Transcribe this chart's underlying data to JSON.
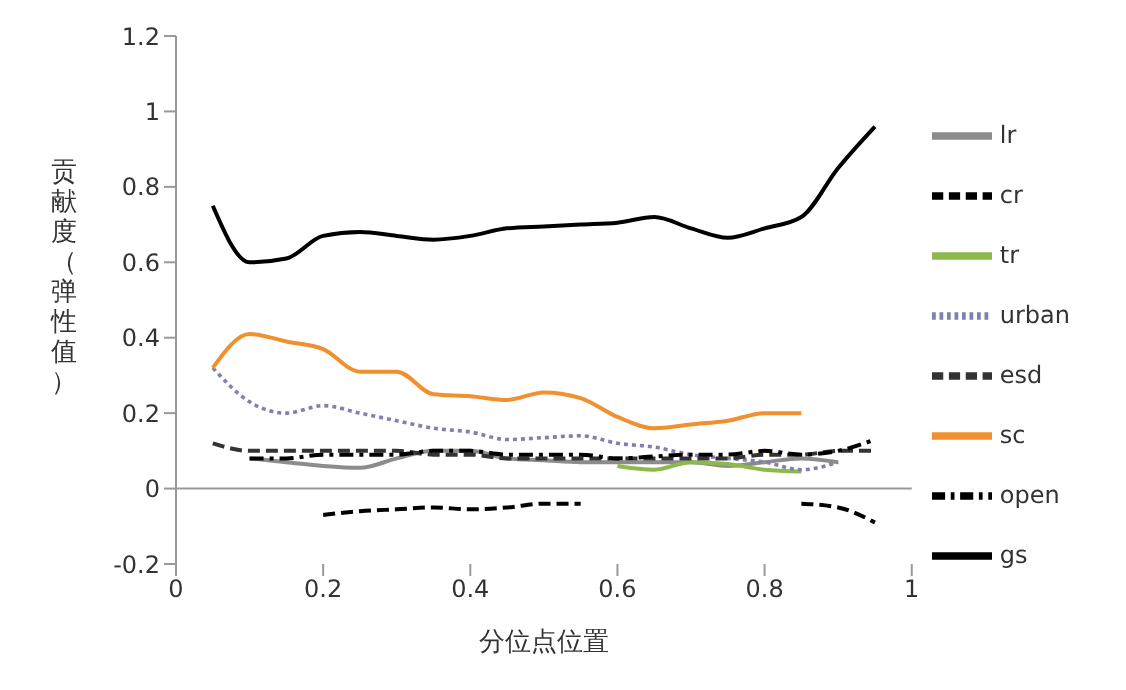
{
  "chart_data": {
    "type": "line",
    "xlabel": "分位点位置",
    "ylabel": "贡献度（弹性值）",
    "x": [
      0.05,
      0.1,
      0.15,
      0.2,
      0.25,
      0.3,
      0.35,
      0.4,
      0.45,
      0.5,
      0.55,
      0.6,
      0.65,
      0.7,
      0.75,
      0.8,
      0.85,
      0.9,
      0.95
    ],
    "series": [
      {
        "name": "lr",
        "color": "#8c8c8c",
        "line_style": "solid",
        "values": [
          null,
          0.08,
          0.07,
          0.06,
          0.055,
          0.08,
          0.1,
          0.1,
          0.08,
          0.075,
          0.07,
          0.07,
          0.07,
          0.07,
          0.06,
          0.07,
          0.08,
          0.07,
          null
        ]
      },
      {
        "name": "cr",
        "color": "#000000",
        "line_style": "dashed",
        "values": [
          null,
          null,
          null,
          -0.07,
          -0.06,
          -0.055,
          -0.05,
          -0.055,
          -0.05,
          -0.04,
          -0.04,
          null,
          null,
          null,
          null,
          null,
          -0.04,
          -0.05,
          -0.09
        ]
      },
      {
        "name": "tr",
        "color": "#8db84a",
        "line_style": "solid",
        "values": [
          null,
          null,
          null,
          null,
          null,
          null,
          null,
          null,
          null,
          null,
          null,
          0.06,
          0.05,
          0.07,
          0.065,
          0.05,
          0.045,
          null,
          null
        ]
      },
      {
        "name": "urban",
        "color": "#8080b0",
        "line_style": "dotted",
        "values": [
          0.32,
          0.23,
          0.2,
          0.22,
          0.2,
          0.18,
          0.16,
          0.15,
          0.13,
          0.135,
          0.14,
          0.12,
          0.11,
          0.09,
          0.08,
          0.07,
          0.05,
          0.07,
          null
        ]
      },
      {
        "name": "esd",
        "color": "#333333",
        "line_style": "dashed",
        "values": [
          0.12,
          0.1,
          0.1,
          0.1,
          0.1,
          0.1,
          0.09,
          0.09,
          0.08,
          0.08,
          0.08,
          0.08,
          0.08,
          0.08,
          0.08,
          0.09,
          0.09,
          0.1,
          0.1
        ]
      },
      {
        "name": "sc",
        "color": "#f0902f",
        "line_style": "solid",
        "values": [
          0.32,
          0.41,
          0.39,
          0.37,
          0.31,
          0.31,
          0.25,
          0.245,
          0.235,
          0.255,
          0.24,
          0.19,
          0.16,
          0.17,
          0.18,
          0.2,
          0.2,
          null,
          null
        ]
      },
      {
        "name": "open",
        "color": "#000000",
        "line_style": "dashdot",
        "values": [
          null,
          0.08,
          0.08,
          0.09,
          0.09,
          0.09,
          0.1,
          0.1,
          0.09,
          0.09,
          0.09,
          0.08,
          0.085,
          0.09,
          0.09,
          0.1,
          0.09,
          0.1,
          0.13
        ]
      },
      {
        "name": "gs",
        "color": "#000000",
        "line_style": "solid",
        "values": [
          0.75,
          0.6,
          0.61,
          0.67,
          0.68,
          0.67,
          0.66,
          0.67,
          0.69,
          0.695,
          0.7,
          0.705,
          0.72,
          0.69,
          0.665,
          0.69,
          0.72,
          0.85,
          0.96
        ]
      }
    ],
    "xlim": [
      0,
      1
    ],
    "xticks": [
      0,
      0.2,
      0.4,
      0.6,
      0.8,
      1
    ],
    "ylim": [
      -0.2,
      1.2
    ],
    "yticks": [
      -0.2,
      0,
      0.2,
      0.4,
      0.6,
      0.8,
      1,
      1.2
    ],
    "ref_lines": [
      {
        "axis": "y",
        "value": 0,
        "color": "#999999"
      }
    ],
    "grid": false,
    "legend": "right",
    "marker": "none"
  }
}
